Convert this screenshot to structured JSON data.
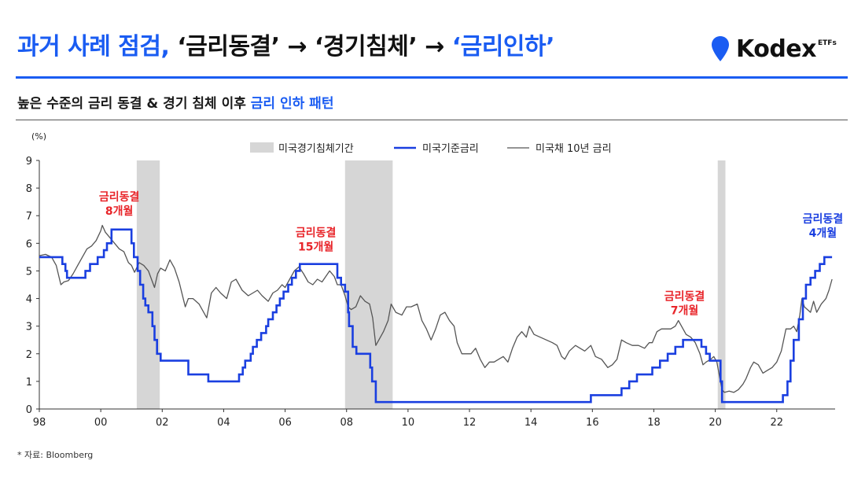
{
  "header": {
    "title_part1": "과거 사례 점검, ",
    "title_part2": "‘금리동결’ → ‘경기침체’ → ",
    "title_part3": "‘금리인하’",
    "subtitle_part1": "높은 수준의 금리 동결 & 경기 침체 이후 ",
    "subtitle_part2": "금리 인하 패턴",
    "logo_text": "Kodex",
    "logo_sup": "ETFs"
  },
  "source": "* 자료: Bloomberg",
  "colors": {
    "accent": "#1a5cf2",
    "fed_rate": "#1a3fe0",
    "treasury": "#555555",
    "recession": "#d6d6d6",
    "annotation_red": "#e8252a",
    "annotation_blue": "#1a3fe0"
  },
  "chart_data": {
    "type": "line",
    "y_unit": "(%)",
    "ylim": [
      0,
      9
    ],
    "yticks": [
      0,
      1,
      2,
      3,
      4,
      5,
      6,
      7,
      8,
      9
    ],
    "xlim": [
      1998,
      2023.9
    ],
    "xticks": [
      {
        "year": 1998,
        "label": "98"
      },
      {
        "year": 2000,
        "label": "00"
      },
      {
        "year": 2002,
        "label": "02"
      },
      {
        "year": 2004,
        "label": "04"
      },
      {
        "year": 2006,
        "label": "06"
      },
      {
        "year": 2008,
        "label": "08"
      },
      {
        "year": 2010,
        "label": "10"
      },
      {
        "year": 2012,
        "label": "12"
      },
      {
        "year": 2014,
        "label": "14"
      },
      {
        "year": 2016,
        "label": "16"
      },
      {
        "year": 2018,
        "label": "18"
      },
      {
        "year": 2020,
        "label": "20"
      },
      {
        "year": 2022,
        "label": "22"
      }
    ],
    "legend": {
      "placement": "top-center",
      "items": [
        {
          "name": "미국경기침체기간",
          "kind": "box"
        },
        {
          "name": "미국기준금리",
          "kind": "line-thick"
        },
        {
          "name": "미국채 10년 금리",
          "kind": "line-thin"
        }
      ]
    },
    "recessions": [
      [
        2001.17,
        2001.92
      ],
      [
        2007.95,
        2009.5
      ],
      [
        2020.08,
        2020.33
      ]
    ],
    "series": [
      {
        "name": "미국기준금리",
        "step": true,
        "points": [
          [
            1998.0,
            5.5
          ],
          [
            1998.75,
            5.25
          ],
          [
            1998.85,
            5.0
          ],
          [
            1998.9,
            4.75
          ],
          [
            1999.5,
            5.0
          ],
          [
            1999.65,
            5.25
          ],
          [
            1999.9,
            5.5
          ],
          [
            2000.1,
            5.75
          ],
          [
            2000.2,
            6.0
          ],
          [
            2000.35,
            6.5
          ],
          [
            2000.95,
            6.5
          ],
          [
            2001.0,
            6.0
          ],
          [
            2001.08,
            5.5
          ],
          [
            2001.2,
            5.0
          ],
          [
            2001.28,
            4.5
          ],
          [
            2001.38,
            4.0
          ],
          [
            2001.45,
            3.75
          ],
          [
            2001.55,
            3.5
          ],
          [
            2001.68,
            3.0
          ],
          [
            2001.75,
            2.5
          ],
          [
            2001.83,
            2.0
          ],
          [
            2001.95,
            1.75
          ],
          [
            2002.85,
            1.25
          ],
          [
            2003.5,
            1.0
          ],
          [
            2004.5,
            1.25
          ],
          [
            2004.62,
            1.5
          ],
          [
            2004.7,
            1.75
          ],
          [
            2004.88,
            2.0
          ],
          [
            2004.95,
            2.25
          ],
          [
            2005.08,
            2.5
          ],
          [
            2005.22,
            2.75
          ],
          [
            2005.38,
            3.0
          ],
          [
            2005.45,
            3.25
          ],
          [
            2005.6,
            3.5
          ],
          [
            2005.72,
            3.75
          ],
          [
            2005.83,
            4.0
          ],
          [
            2005.95,
            4.25
          ],
          [
            2006.1,
            4.5
          ],
          [
            2006.22,
            4.75
          ],
          [
            2006.35,
            5.0
          ],
          [
            2006.48,
            5.25
          ],
          [
            2007.7,
            4.75
          ],
          [
            2007.82,
            4.5
          ],
          [
            2007.95,
            4.25
          ],
          [
            2008.05,
            3.5
          ],
          [
            2008.08,
            3.0
          ],
          [
            2008.2,
            2.25
          ],
          [
            2008.32,
            2.0
          ],
          [
            2008.77,
            1.5
          ],
          [
            2008.83,
            1.0
          ],
          [
            2008.95,
            0.25
          ],
          [
            2015.95,
            0.5
          ],
          [
            2016.95,
            0.75
          ],
          [
            2017.2,
            1.0
          ],
          [
            2017.45,
            1.25
          ],
          [
            2017.95,
            1.5
          ],
          [
            2018.2,
            1.75
          ],
          [
            2018.45,
            2.0
          ],
          [
            2018.7,
            2.25
          ],
          [
            2018.95,
            2.5
          ],
          [
            2019.55,
            2.25
          ],
          [
            2019.7,
            2.0
          ],
          [
            2019.82,
            1.75
          ],
          [
            2020.17,
            1.0
          ],
          [
            2020.22,
            0.25
          ],
          [
            2022.2,
            0.5
          ],
          [
            2022.35,
            1.0
          ],
          [
            2022.45,
            1.75
          ],
          [
            2022.55,
            2.5
          ],
          [
            2022.72,
            3.25
          ],
          [
            2022.85,
            4.0
          ],
          [
            2022.95,
            4.5
          ],
          [
            2023.1,
            4.75
          ],
          [
            2023.25,
            5.0
          ],
          [
            2023.4,
            5.25
          ],
          [
            2023.55,
            5.5
          ],
          [
            2023.8,
            5.5
          ]
        ]
      },
      {
        "name": "미국채 10년 금리",
        "step": false,
        "points": [
          [
            1998.0,
            5.55
          ],
          [
            1998.2,
            5.6
          ],
          [
            1998.4,
            5.5
          ],
          [
            1998.55,
            5.2
          ],
          [
            1998.7,
            4.5
          ],
          [
            1998.8,
            4.6
          ],
          [
            1998.95,
            4.65
          ],
          [
            1999.1,
            4.9
          ],
          [
            1999.25,
            5.2
          ],
          [
            1999.4,
            5.5
          ],
          [
            1999.55,
            5.8
          ],
          [
            1999.7,
            5.9
          ],
          [
            1999.85,
            6.1
          ],
          [
            2000.0,
            6.45
          ],
          [
            2000.05,
            6.65
          ],
          [
            2000.15,
            6.4
          ],
          [
            2000.3,
            6.2
          ],
          [
            2000.45,
            6.0
          ],
          [
            2000.6,
            5.8
          ],
          [
            2000.75,
            5.7
          ],
          [
            2000.9,
            5.3
          ],
          [
            2001.0,
            5.2
          ],
          [
            2001.1,
            4.95
          ],
          [
            2001.25,
            5.3
          ],
          [
            2001.4,
            5.2
          ],
          [
            2001.55,
            5.0
          ],
          [
            2001.65,
            4.7
          ],
          [
            2001.75,
            4.4
          ],
          [
            2001.85,
            4.9
          ],
          [
            2001.95,
            5.1
          ],
          [
            2002.1,
            5.0
          ],
          [
            2002.25,
            5.4
          ],
          [
            2002.4,
            5.1
          ],
          [
            2002.55,
            4.6
          ],
          [
            2002.75,
            3.7
          ],
          [
            2002.85,
            4.0
          ],
          [
            2003.0,
            4.0
          ],
          [
            2003.2,
            3.8
          ],
          [
            2003.45,
            3.3
          ],
          [
            2003.6,
            4.2
          ],
          [
            2003.75,
            4.4
          ],
          [
            2003.9,
            4.2
          ],
          [
            2004.1,
            4.0
          ],
          [
            2004.25,
            4.6
          ],
          [
            2004.4,
            4.7
          ],
          [
            2004.6,
            4.3
          ],
          [
            2004.8,
            4.1
          ],
          [
            2004.95,
            4.2
          ],
          [
            2005.1,
            4.3
          ],
          [
            2005.25,
            4.1
          ],
          [
            2005.45,
            3.9
          ],
          [
            2005.6,
            4.2
          ],
          [
            2005.75,
            4.3
          ],
          [
            2005.9,
            4.5
          ],
          [
            2006.0,
            4.4
          ],
          [
            2006.15,
            4.7
          ],
          [
            2006.3,
            5.0
          ],
          [
            2006.45,
            5.15
          ],
          [
            2006.6,
            4.9
          ],
          [
            2006.75,
            4.6
          ],
          [
            2006.9,
            4.5
          ],
          [
            2007.05,
            4.7
          ],
          [
            2007.2,
            4.6
          ],
          [
            2007.45,
            5.0
          ],
          [
            2007.6,
            4.8
          ],
          [
            2007.7,
            4.5
          ],
          [
            2007.82,
            4.5
          ],
          [
            2007.95,
            4.1
          ],
          [
            2008.05,
            3.7
          ],
          [
            2008.15,
            3.6
          ],
          [
            2008.3,
            3.7
          ],
          [
            2008.45,
            4.1
          ],
          [
            2008.6,
            3.9
          ],
          [
            2008.75,
            3.8
          ],
          [
            2008.85,
            3.3
          ],
          [
            2008.95,
            2.3
          ],
          [
            2009.05,
            2.5
          ],
          [
            2009.2,
            2.8
          ],
          [
            2009.35,
            3.2
          ],
          [
            2009.45,
            3.8
          ],
          [
            2009.6,
            3.5
          ],
          [
            2009.8,
            3.4
          ],
          [
            2009.95,
            3.7
          ],
          [
            2010.1,
            3.7
          ],
          [
            2010.3,
            3.8
          ],
          [
            2010.45,
            3.2
          ],
          [
            2010.6,
            2.9
          ],
          [
            2010.75,
            2.5
          ],
          [
            2010.9,
            2.9
          ],
          [
            2011.05,
            3.4
          ],
          [
            2011.2,
            3.5
          ],
          [
            2011.35,
            3.2
          ],
          [
            2011.5,
            3.0
          ],
          [
            2011.6,
            2.4
          ],
          [
            2011.75,
            2.0
          ],
          [
            2011.9,
            2.0
          ],
          [
            2012.05,
            2.0
          ],
          [
            2012.2,
            2.2
          ],
          [
            2012.35,
            1.8
          ],
          [
            2012.5,
            1.5
          ],
          [
            2012.65,
            1.7
          ],
          [
            2012.8,
            1.7
          ],
          [
            2012.95,
            1.8
          ],
          [
            2013.1,
            1.9
          ],
          [
            2013.25,
            1.7
          ],
          [
            2013.4,
            2.2
          ],
          [
            2013.55,
            2.6
          ],
          [
            2013.7,
            2.8
          ],
          [
            2013.85,
            2.6
          ],
          [
            2013.95,
            3.0
          ],
          [
            2014.1,
            2.7
          ],
          [
            2014.3,
            2.6
          ],
          [
            2014.5,
            2.5
          ],
          [
            2014.7,
            2.4
          ],
          [
            2014.85,
            2.3
          ],
          [
            2015.0,
            1.9
          ],
          [
            2015.1,
            1.8
          ],
          [
            2015.25,
            2.1
          ],
          [
            2015.45,
            2.3
          ],
          [
            2015.6,
            2.2
          ],
          [
            2015.75,
            2.1
          ],
          [
            2015.95,
            2.3
          ],
          [
            2016.1,
            1.9
          ],
          [
            2016.3,
            1.8
          ],
          [
            2016.5,
            1.5
          ],
          [
            2016.65,
            1.6
          ],
          [
            2016.8,
            1.8
          ],
          [
            2016.95,
            2.5
          ],
          [
            2017.1,
            2.4
          ],
          [
            2017.3,
            2.3
          ],
          [
            2017.5,
            2.3
          ],
          [
            2017.7,
            2.2
          ],
          [
            2017.85,
            2.4
          ],
          [
            2017.95,
            2.4
          ],
          [
            2018.1,
            2.8
          ],
          [
            2018.25,
            2.9
          ],
          [
            2018.4,
            2.9
          ],
          [
            2018.55,
            2.9
          ],
          [
            2018.7,
            3.0
          ],
          [
            2018.8,
            3.2
          ],
          [
            2018.95,
            2.9
          ],
          [
            2019.05,
            2.7
          ],
          [
            2019.2,
            2.6
          ],
          [
            2019.35,
            2.4
          ],
          [
            2019.5,
            2.0
          ],
          [
            2019.6,
            1.6
          ],
          [
            2019.7,
            1.7
          ],
          [
            2019.85,
            1.8
          ],
          [
            2019.95,
            1.9
          ],
          [
            2020.05,
            1.7
          ],
          [
            2020.15,
            1.1
          ],
          [
            2020.22,
            0.7
          ],
          [
            2020.3,
            0.6
          ],
          [
            2020.45,
            0.65
          ],
          [
            2020.6,
            0.6
          ],
          [
            2020.75,
            0.7
          ],
          [
            2020.9,
            0.9
          ],
          [
            2021.0,
            1.1
          ],
          [
            2021.15,
            1.5
          ],
          [
            2021.25,
            1.7
          ],
          [
            2021.4,
            1.6
          ],
          [
            2021.55,
            1.3
          ],
          [
            2021.7,
            1.4
          ],
          [
            2021.85,
            1.5
          ],
          [
            2022.0,
            1.7
          ],
          [
            2022.15,
            2.1
          ],
          [
            2022.3,
            2.9
          ],
          [
            2022.45,
            2.9
          ],
          [
            2022.55,
            3.0
          ],
          [
            2022.65,
            2.8
          ],
          [
            2022.75,
            3.4
          ],
          [
            2022.82,
            4.0
          ],
          [
            2022.9,
            3.7
          ],
          [
            2023.0,
            3.6
          ],
          [
            2023.1,
            3.5
          ],
          [
            2023.2,
            3.9
          ],
          [
            2023.3,
            3.5
          ],
          [
            2023.45,
            3.8
          ],
          [
            2023.6,
            4.0
          ],
          [
            2023.7,
            4.3
          ],
          [
            2023.8,
            4.7
          ]
        ]
      }
    ],
    "annotations": [
      {
        "lines": [
          "금리동결",
          "8개월"
        ],
        "x": 2000.6,
        "y": 7.55,
        "color": "red"
      },
      {
        "lines": [
          "금리동결",
          "15개월"
        ],
        "x": 2007.0,
        "y": 6.25,
        "color": "red"
      },
      {
        "lines": [
          "금리동결",
          "7개월"
        ],
        "x": 2019.0,
        "y": 3.95,
        "color": "red"
      },
      {
        "lines": [
          "금리동결",
          "4개월"
        ],
        "x": 2023.5,
        "y": 6.75,
        "color": "blue"
      }
    ]
  }
}
